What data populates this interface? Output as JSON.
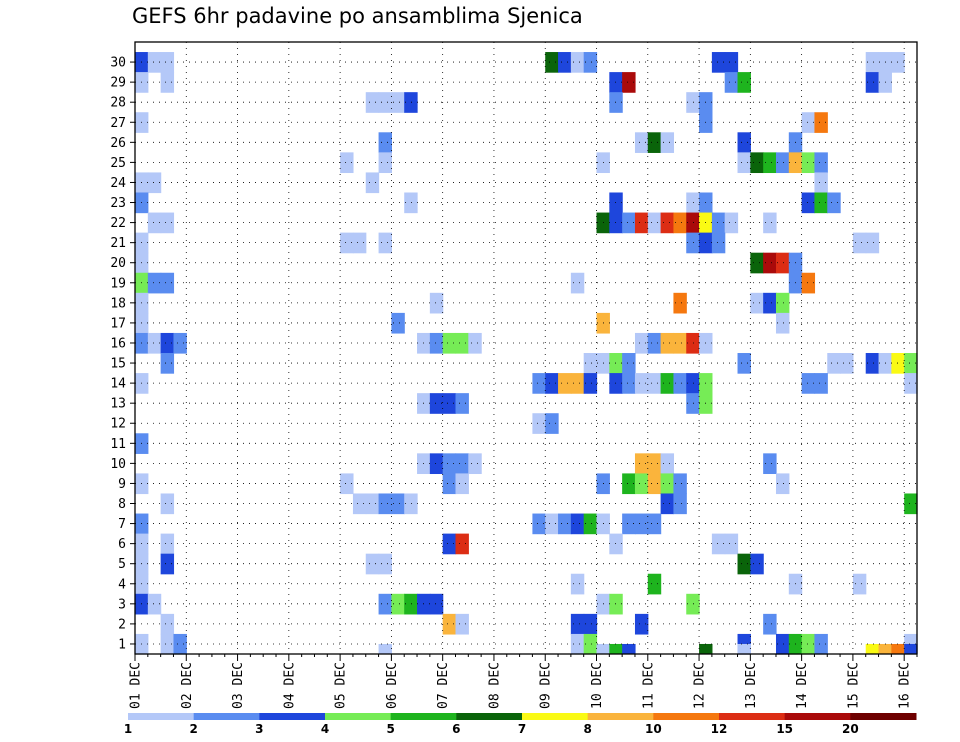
{
  "chart_data": {
    "type": "heatmap",
    "title": "GEFS 6hr padavine po ansamblima Sjenica",
    "xlabel": "",
    "ylabel": "",
    "x_tick_labels": [
      "01 DEC",
      "02 DEC",
      "03 DEC",
      "04 DEC",
      "05 DEC",
      "06 DEC",
      "07 DEC",
      "08 DEC",
      "09 DEC",
      "10 DEC",
      "11 DEC",
      "12 DEC",
      "13 DEC",
      "14 DEC",
      "15 DEC",
      "16 DEC"
    ],
    "y_tick_labels": [
      "1",
      "2",
      "3",
      "4",
      "5",
      "6",
      "7",
      "8",
      "9",
      "10",
      "11",
      "12",
      "13",
      "14",
      "15",
      "16",
      "17",
      "18",
      "19",
      "20",
      "21",
      "22",
      "23",
      "24",
      "25",
      "26",
      "27",
      "28",
      "29",
      "30"
    ],
    "time_steps": 61,
    "members": 30,
    "legend": {
      "levels": [
        "1",
        "2",
        "3",
        "4",
        "5",
        "6",
        "7",
        "8",
        "10",
        "12",
        "15",
        "20"
      ],
      "colors": [
        "#b4c8f8",
        "#5a8cf0",
        "#1e46dc",
        "#76ec56",
        "#1eb41e",
        "#0a640a",
        "#fafa14",
        "#fab43c",
        "#f5780f",
        "#dc2d14",
        "#aa0a0a",
        "#6e0000"
      ]
    },
    "cells": [
      [
        30,
        0,
        3
      ],
      [
        30,
        1,
        1
      ],
      [
        30,
        2,
        1
      ],
      [
        30,
        32,
        6
      ],
      [
        30,
        33,
        3
      ],
      [
        30,
        34,
        1
      ],
      [
        30,
        35,
        2
      ],
      [
        30,
        45,
        3
      ],
      [
        30,
        46,
        3
      ],
      [
        30,
        57,
        1
      ],
      [
        30,
        58,
        1
      ],
      [
        30,
        59,
        1
      ],
      [
        29,
        0,
        1
      ],
      [
        29,
        2,
        1
      ],
      [
        29,
        37,
        3
      ],
      [
        29,
        38,
        11
      ],
      [
        29,
        46,
        2
      ],
      [
        29,
        47,
        5
      ],
      [
        29,
        57,
        3
      ],
      [
        29,
        58,
        1
      ],
      [
        28,
        18,
        1
      ],
      [
        28,
        19,
        1
      ],
      [
        28,
        20,
        1
      ],
      [
        28,
        21,
        3
      ],
      [
        28,
        37,
        2
      ],
      [
        28,
        43,
        1
      ],
      [
        28,
        44,
        2
      ],
      [
        27,
        0,
        1
      ],
      [
        27,
        44,
        2
      ],
      [
        27,
        52,
        1
      ],
      [
        27,
        53,
        9
      ],
      [
        26,
        19,
        2
      ],
      [
        26,
        39,
        1
      ],
      [
        26,
        40,
        6
      ],
      [
        26,
        41,
        1
      ],
      [
        26,
        47,
        3
      ],
      [
        26,
        51,
        2
      ],
      [
        25,
        16,
        1
      ],
      [
        25,
        19,
        1
      ],
      [
        25,
        36,
        1
      ],
      [
        25,
        47,
        1
      ],
      [
        25,
        48,
        6
      ],
      [
        25,
        49,
        5
      ],
      [
        25,
        50,
        2
      ],
      [
        25,
        51,
        8
      ],
      [
        25,
        52,
        4
      ],
      [
        25,
        53,
        2
      ],
      [
        24,
        0,
        1
      ],
      [
        24,
        1,
        1
      ],
      [
        24,
        18,
        1
      ],
      [
        24,
        53,
        1
      ],
      [
        23,
        0,
        2
      ],
      [
        23,
        21,
        1
      ],
      [
        23,
        37,
        3
      ],
      [
        23,
        43,
        1
      ],
      [
        23,
        44,
        2
      ],
      [
        23,
        52,
        3
      ],
      [
        23,
        53,
        5
      ],
      [
        23,
        54,
        2
      ],
      [
        22,
        1,
        1
      ],
      [
        22,
        2,
        1
      ],
      [
        22,
        36,
        6
      ],
      [
        22,
        37,
        3
      ],
      [
        22,
        38,
        2
      ],
      [
        22,
        39,
        10
      ],
      [
        22,
        40,
        1
      ],
      [
        22,
        41,
        10
      ],
      [
        22,
        42,
        9
      ],
      [
        22,
        43,
        11
      ],
      [
        22,
        44,
        7
      ],
      [
        22,
        45,
        2
      ],
      [
        22,
        46,
        1
      ],
      [
        22,
        49,
        1
      ],
      [
        21,
        0,
        1
      ],
      [
        21,
        16,
        1
      ],
      [
        21,
        17,
        1
      ],
      [
        21,
        19,
        1
      ],
      [
        21,
        43,
        2
      ],
      [
        21,
        44,
        3
      ],
      [
        21,
        45,
        2
      ],
      [
        21,
        56,
        1
      ],
      [
        21,
        57,
        1
      ],
      [
        20,
        0,
        1
      ],
      [
        20,
        48,
        6
      ],
      [
        20,
        49,
        11
      ],
      [
        20,
        50,
        10
      ],
      [
        20,
        51,
        2
      ],
      [
        19,
        0,
        4
      ],
      [
        19,
        1,
        2
      ],
      [
        19,
        2,
        2
      ],
      [
        19,
        34,
        1
      ],
      [
        19,
        51,
        2
      ],
      [
        19,
        52,
        9
      ],
      [
        18,
        0,
        1
      ],
      [
        18,
        23,
        1
      ],
      [
        18,
        42,
        9
      ],
      [
        18,
        48,
        1
      ],
      [
        18,
        49,
        3
      ],
      [
        18,
        50,
        4
      ],
      [
        17,
        0,
        1
      ],
      [
        17,
        20,
        2
      ],
      [
        17,
        36,
        8
      ],
      [
        17,
        50,
        1
      ],
      [
        16,
        0,
        2
      ],
      [
        16,
        1,
        1
      ],
      [
        16,
        2,
        3
      ],
      [
        16,
        3,
        2
      ],
      [
        16,
        22,
        1
      ],
      [
        16,
        23,
        2
      ],
      [
        16,
        24,
        4
      ],
      [
        16,
        25,
        4
      ],
      [
        16,
        26,
        1
      ],
      [
        16,
        39,
        1
      ],
      [
        16,
        40,
        2
      ],
      [
        16,
        41,
        8
      ],
      [
        16,
        42,
        8
      ],
      [
        16,
        43,
        10
      ],
      [
        16,
        44,
        1
      ],
      [
        15,
        2,
        2
      ],
      [
        15,
        35,
        1
      ],
      [
        15,
        36,
        1
      ],
      [
        15,
        37,
        4
      ],
      [
        15,
        38,
        2
      ],
      [
        15,
        47,
        2
      ],
      [
        15,
        54,
        1
      ],
      [
        15,
        55,
        1
      ],
      [
        15,
        57,
        3
      ],
      [
        15,
        58,
        1
      ],
      [
        15,
        59,
        7
      ],
      [
        15,
        60,
        4
      ],
      [
        14,
        0,
        1
      ],
      [
        14,
        31,
        2
      ],
      [
        14,
        32,
        3
      ],
      [
        14,
        33,
        8
      ],
      [
        14,
        34,
        8
      ],
      [
        14,
        35,
        3
      ],
      [
        14,
        37,
        3
      ],
      [
        14,
        38,
        2
      ],
      [
        14,
        39,
        1
      ],
      [
        14,
        40,
        1
      ],
      [
        14,
        41,
        5
      ],
      [
        14,
        42,
        2
      ],
      [
        14,
        43,
        3
      ],
      [
        14,
        44,
        4
      ],
      [
        14,
        52,
        2
      ],
      [
        14,
        53,
        2
      ],
      [
        14,
        60,
        1
      ],
      [
        13,
        22,
        1
      ],
      [
        13,
        23,
        3
      ],
      [
        13,
        24,
        3
      ],
      [
        13,
        25,
        2
      ],
      [
        13,
        43,
        2
      ],
      [
        13,
        44,
        4
      ],
      [
        12,
        31,
        1
      ],
      [
        12,
        32,
        2
      ],
      [
        11,
        0,
        2
      ],
      [
        10,
        22,
        1
      ],
      [
        10,
        23,
        3
      ],
      [
        10,
        24,
        2
      ],
      [
        10,
        25,
        2
      ],
      [
        10,
        26,
        1
      ],
      [
        10,
        39,
        8
      ],
      [
        10,
        40,
        8
      ],
      [
        10,
        41,
        1
      ],
      [
        10,
        49,
        2
      ],
      [
        9,
        0,
        1
      ],
      [
        9,
        16,
        1
      ],
      [
        9,
        24,
        2
      ],
      [
        9,
        25,
        1
      ],
      [
        9,
        36,
        2
      ],
      [
        9,
        38,
        5
      ],
      [
        9,
        39,
        4
      ],
      [
        9,
        40,
        8
      ],
      [
        9,
        41,
        4
      ],
      [
        9,
        42,
        2
      ],
      [
        9,
        50,
        1
      ],
      [
        8,
        2,
        1
      ],
      [
        8,
        17,
        1
      ],
      [
        8,
        18,
        1
      ],
      [
        8,
        19,
        2
      ],
      [
        8,
        20,
        2
      ],
      [
        8,
        21,
        1
      ],
      [
        8,
        41,
        3
      ],
      [
        8,
        42,
        2
      ],
      [
        8,
        60,
        5
      ],
      [
        7,
        0,
        2
      ],
      [
        7,
        31,
        2
      ],
      [
        7,
        32,
        1
      ],
      [
        7,
        33,
        2
      ],
      [
        7,
        34,
        3
      ],
      [
        7,
        35,
        5
      ],
      [
        7,
        36,
        1
      ],
      [
        7,
        38,
        2
      ],
      [
        7,
        39,
        2
      ],
      [
        7,
        40,
        2
      ],
      [
        6,
        0,
        1
      ],
      [
        6,
        2,
        1
      ],
      [
        6,
        24,
        3
      ],
      [
        6,
        25,
        10
      ],
      [
        6,
        37,
        1
      ],
      [
        6,
        45,
        1
      ],
      [
        6,
        46,
        1
      ],
      [
        5,
        0,
        1
      ],
      [
        5,
        2,
        3
      ],
      [
        5,
        18,
        1
      ],
      [
        5,
        19,
        1
      ],
      [
        5,
        47,
        6
      ],
      [
        5,
        48,
        3
      ],
      [
        4,
        0,
        1
      ],
      [
        4,
        34,
        1
      ],
      [
        4,
        40,
        5
      ],
      [
        4,
        51,
        1
      ],
      [
        4,
        56,
        1
      ],
      [
        3,
        0,
        3
      ],
      [
        3,
        1,
        1
      ],
      [
        3,
        19,
        2
      ],
      [
        3,
        20,
        4
      ],
      [
        3,
        21,
        5
      ],
      [
        3,
        22,
        3
      ],
      [
        3,
        23,
        3
      ],
      [
        3,
        36,
        1
      ],
      [
        3,
        37,
        4
      ],
      [
        3,
        43,
        4
      ],
      [
        2,
        2,
        1
      ],
      [
        2,
        24,
        8
      ],
      [
        2,
        25,
        1
      ],
      [
        2,
        34,
        3
      ],
      [
        2,
        35,
        3
      ],
      [
        2,
        39,
        3
      ],
      [
        2,
        49,
        2
      ],
      [
        1,
        0,
        1
      ],
      [
        1,
        2,
        1
      ],
      [
        1,
        3,
        2
      ],
      [
        1,
        34,
        1
      ],
      [
        1,
        35,
        4
      ],
      [
        1,
        47,
        3
      ],
      [
        1,
        50,
        3
      ],
      [
        1,
        51,
        5
      ],
      [
        1,
        52,
        4
      ],
      [
        1,
        53,
        2
      ],
      [
        1,
        60,
        1
      ]
    ],
    "bottom_strip": [
      [
        19,
        1
      ],
      [
        36,
        1
      ],
      [
        37,
        5
      ],
      [
        38,
        3
      ],
      [
        44,
        6
      ],
      [
        47,
        1
      ],
      [
        57,
        7
      ],
      [
        58,
        8
      ],
      [
        59,
        9
      ],
      [
        60,
        3
      ]
    ]
  }
}
